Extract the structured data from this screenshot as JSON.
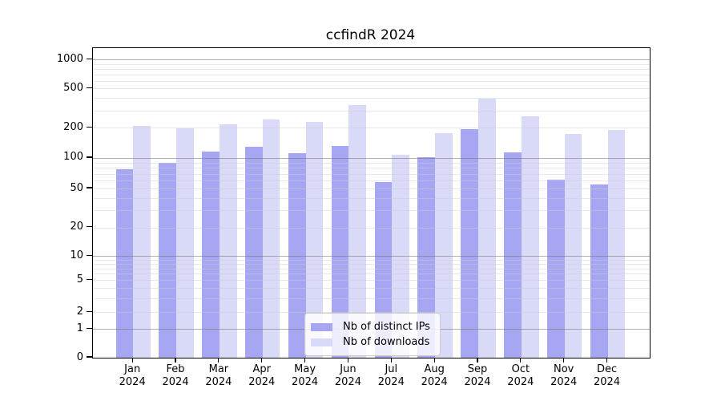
{
  "chart_data": {
    "type": "bar",
    "title": "ccfindR 2024",
    "categories": [
      "Jan 2024",
      "Feb 2024",
      "Mar 2024",
      "Apr 2024",
      "May 2024",
      "Jun 2024",
      "Jul 2024",
      "Aug 2024",
      "Sep 2024",
      "Oct 2024",
      "Nov 2024",
      "Dec 2024"
    ],
    "series": [
      {
        "name": "Nb of distinct IPs",
        "color": "#a6a6f2",
        "values": [
          77,
          90,
          115,
          130,
          112,
          131,
          58,
          102,
          195,
          114,
          61,
          55
        ]
      },
      {
        "name": "Nb of downloads",
        "color": "#d9d9f8",
        "values": [
          207,
          197,
          216,
          244,
          228,
          340,
          108,
          178,
          398,
          262,
          175,
          190
        ]
      }
    ],
    "yscale": "log-like",
    "ytick_values": [
      0,
      1,
      2,
      5,
      10,
      20,
      50,
      100,
      200,
      500,
      1000
    ],
    "major_grid_values": [
      1,
      10,
      100,
      1000
    ],
    "ylim": [
      0,
      1350
    ],
    "xlabel": "",
    "ylabel": "",
    "grid": true,
    "legend_position": "lower center"
  }
}
